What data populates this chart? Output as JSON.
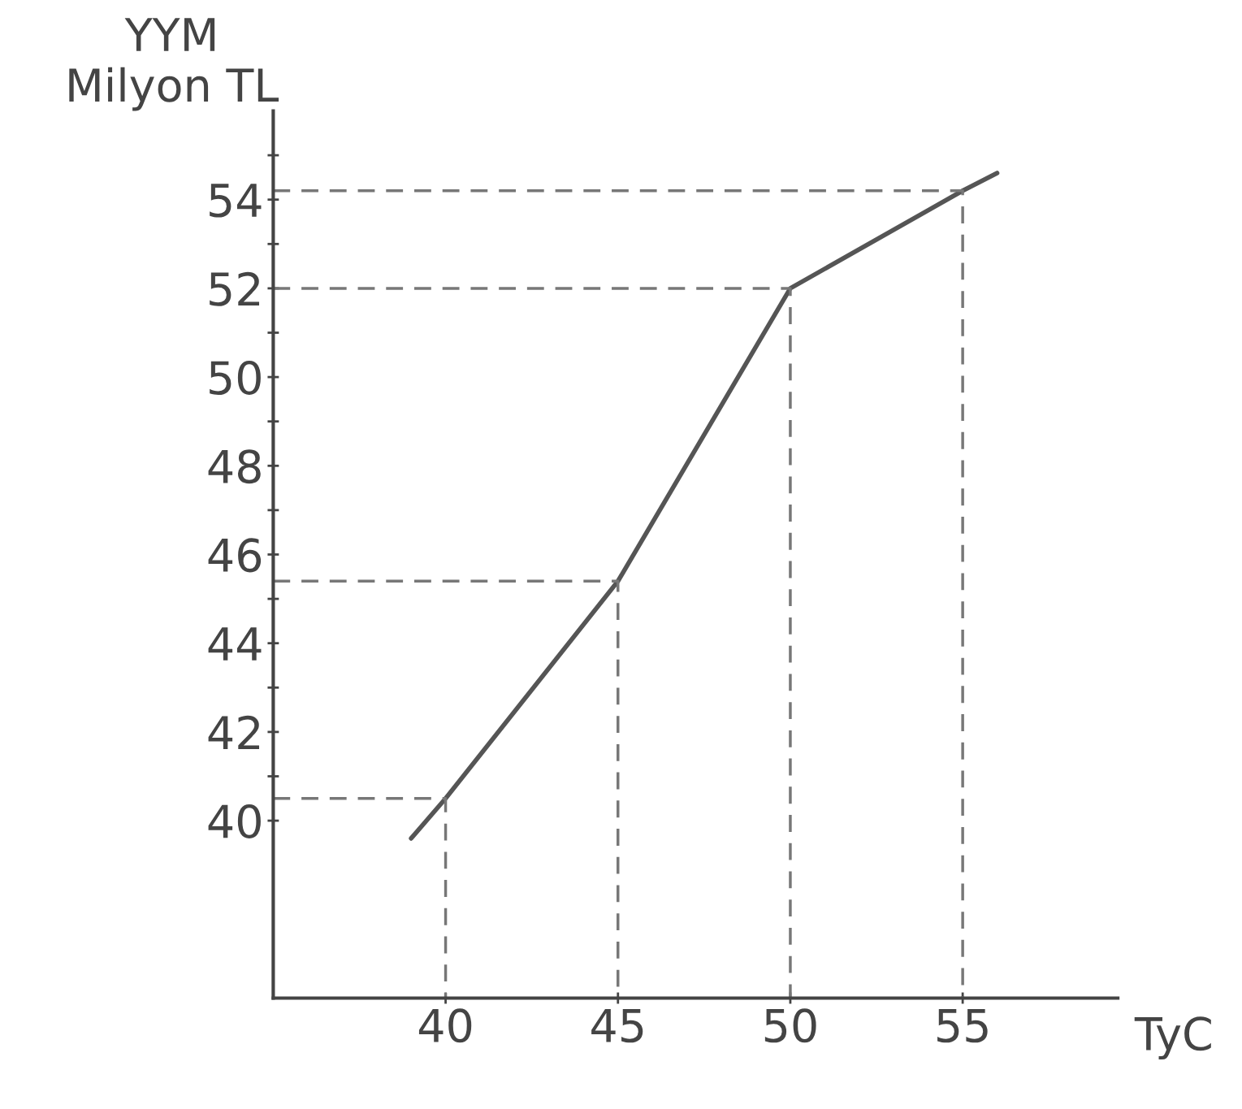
{
  "chart_data": {
    "type": "line",
    "xlabel": "TyC",
    "ylabel": "YYM\nMilyon TL",
    "xlim": [
      35,
      59.5
    ],
    "ylim": [
      36,
      56
    ],
    "xticks": [
      40,
      45,
      50,
      55
    ],
    "yticks": [
      40,
      {
        "value": 41,
        "label": null
      },
      42,
      {
        "value": 43,
        "label": null
      },
      44,
      {
        "value": 45,
        "label": null
      },
      46,
      {
        "value": 47,
        "label": null
      },
      48,
      {
        "value": 49,
        "label": null
      },
      50,
      {
        "value": 51,
        "label": null
      },
      52,
      {
        "value": 53,
        "label": null
      },
      54,
      {
        "value": 55,
        "label": null
      }
    ],
    "grid": false,
    "legend": false,
    "series": [
      {
        "color": "#555555",
        "x": [
          39,
          40,
          45,
          50,
          55,
          56
        ],
        "values": [
          39.6,
          40.5,
          45.4,
          52,
          54.2,
          54.6
        ],
        "marker": "none",
        "line_style": "solid"
      },
      {
        "color": "#777777",
        "x": [
          35,
          40,
          40
        ],
        "values": [
          40.5,
          40.5,
          36
        ],
        "line_style": "dashed"
      },
      {
        "color": "#777777",
        "x": [
          35,
          45,
          45
        ],
        "values": [
          45.4,
          45.4,
          36
        ],
        "line_style": "dashed"
      },
      {
        "color": "#777777",
        "x": [
          35,
          50,
          50
        ],
        "values": [
          52,
          52,
          36
        ],
        "line_style": "dashed"
      },
      {
        "color": "#777777",
        "x": [
          35,
          55,
          55
        ],
        "values": [
          54.2,
          54.2,
          36
        ],
        "line_style": "dashed"
      }
    ]
  }
}
